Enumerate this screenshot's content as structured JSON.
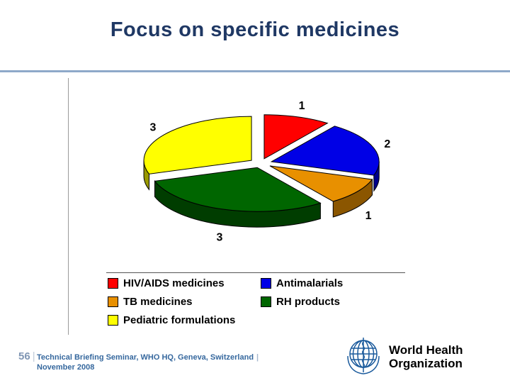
{
  "slide": {
    "title": "Focus on specific medicines"
  },
  "chart_data": {
    "type": "pie",
    "style": "3d-exploded",
    "title": "",
    "labels": [
      "HIV/AIDS medicines",
      "Antimalarials",
      "TB medicines",
      "RH products",
      "Pediatric formulations"
    ],
    "values": [
      1,
      2,
      1,
      3,
      3
    ],
    "data_labels": [
      "1",
      "2",
      "1",
      "3",
      "3"
    ],
    "colors": [
      "#FF0000",
      "#0000E6",
      "#E89000",
      "#006600",
      "#FFFF00"
    ],
    "legend_position": "bottom",
    "legend_columns": 2,
    "start_angle_deg": 0,
    "direction": "clockwise"
  },
  "footer": {
    "page_number": "56",
    "separator": "|",
    "caption_line1": "Technical Briefing Seminar, WHO HQ, Geneva, Switzerland",
    "caption_separator": "|",
    "caption_line2": "November 2008",
    "logo_text_line1": "World Health",
    "logo_text_line2": "Organization"
  }
}
